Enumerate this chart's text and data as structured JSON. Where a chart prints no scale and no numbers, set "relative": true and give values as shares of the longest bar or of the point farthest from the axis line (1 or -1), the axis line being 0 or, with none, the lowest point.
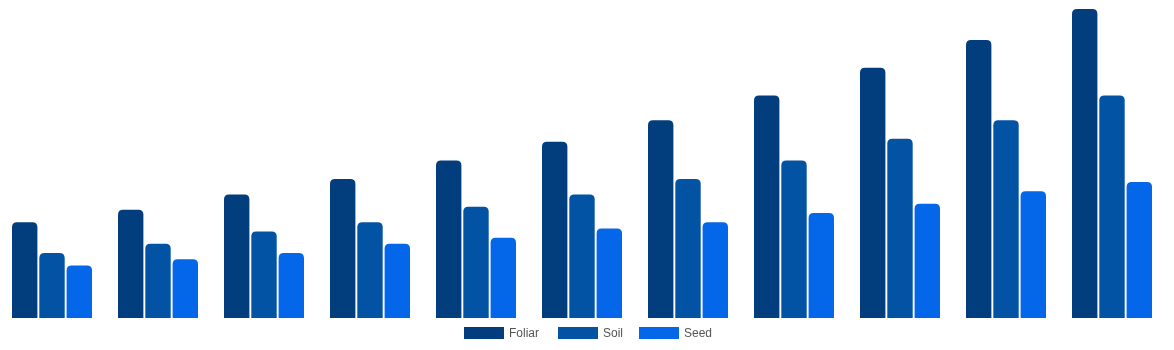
{
  "chart_data": {
    "type": "bar",
    "relative": true,
    "categories": [
      null,
      null,
      null,
      null,
      null,
      null,
      null,
      null,
      null,
      null,
      null
    ],
    "legend": "bottom",
    "series": [
      {
        "name": "Foliar",
        "color": "#023e7d",
        "values": [
          0.31,
          0.35,
          0.4,
          0.45,
          0.51,
          0.57,
          0.64,
          0.72,
          0.81,
          0.9,
          1
        ]
      },
      {
        "name": "Soil",
        "color": "#0353a4",
        "values": [
          0.21,
          0.24,
          0.28,
          0.31,
          0.36,
          0.4,
          0.45,
          0.51,
          0.58,
          0.64,
          0.72
        ]
      },
      {
        "name": "Seed",
        "color": "#0466e8",
        "values": [
          0.17,
          0.19,
          0.21,
          0.24,
          0.26,
          0.29,
          0.31,
          0.34,
          0.37,
          0.41,
          0.44
        ]
      }
    ]
  }
}
